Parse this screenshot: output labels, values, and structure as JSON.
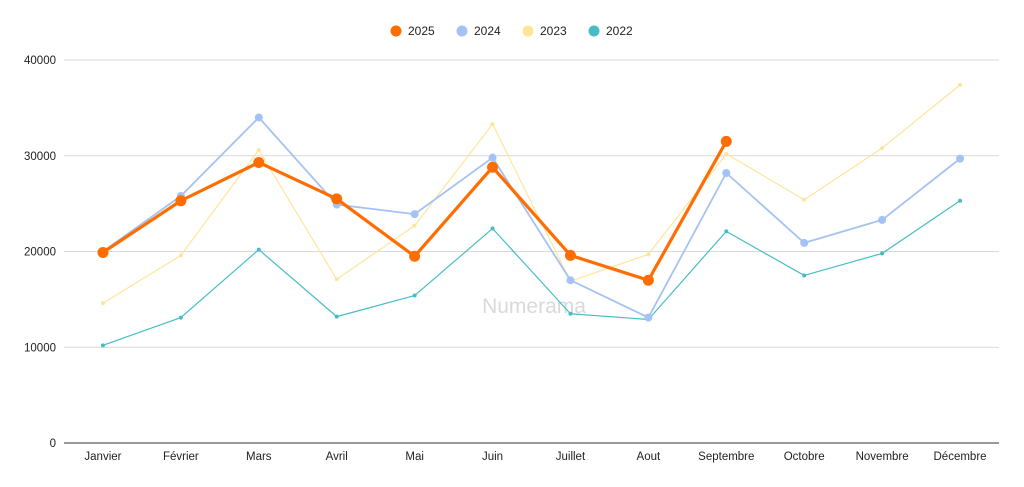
{
  "watermark": "Numerama",
  "chart_data": {
    "type": "line",
    "title": "",
    "xlabel": "",
    "ylabel": "",
    "legend_position": "top-center",
    "grid": true,
    "ylim": [
      0,
      40000
    ],
    "yticks": [
      0,
      10000,
      20000,
      30000,
      40000
    ],
    "ytick_labels": [
      "0",
      "10000",
      "20000",
      "30000",
      "40000"
    ],
    "categories": [
      "Janvier",
      "Février",
      "Mars",
      "Avril",
      "Mai",
      "Juin",
      "Juillet",
      "Aout",
      "Septembre",
      "Octobre",
      "Novembre",
      "Décembre"
    ],
    "series": [
      {
        "name": "2025",
        "color": "#ff6d01",
        "values": [
          19900,
          25300,
          29300,
          25500,
          19500,
          28800,
          19600,
          17000,
          31500,
          null,
          null,
          null
        ]
      },
      {
        "name": "2024",
        "color": "#a4c2f4",
        "values": [
          20000,
          25800,
          34000,
          24900,
          23900,
          29800,
          17000,
          13100,
          28200,
          20900,
          23300,
          29700
        ]
      },
      {
        "name": "2023",
        "color": "#ffe599",
        "values": [
          14600,
          19600,
          30600,
          17100,
          22700,
          33300,
          16900,
          19700,
          30200,
          25400,
          30800,
          37400
        ]
      },
      {
        "name": "2022",
        "color": "#46bdc6",
        "values": [
          10200,
          13100,
          20200,
          13200,
          15400,
          22400,
          13500,
          12900,
          22100,
          17500,
          19800,
          25300
        ]
      }
    ]
  }
}
